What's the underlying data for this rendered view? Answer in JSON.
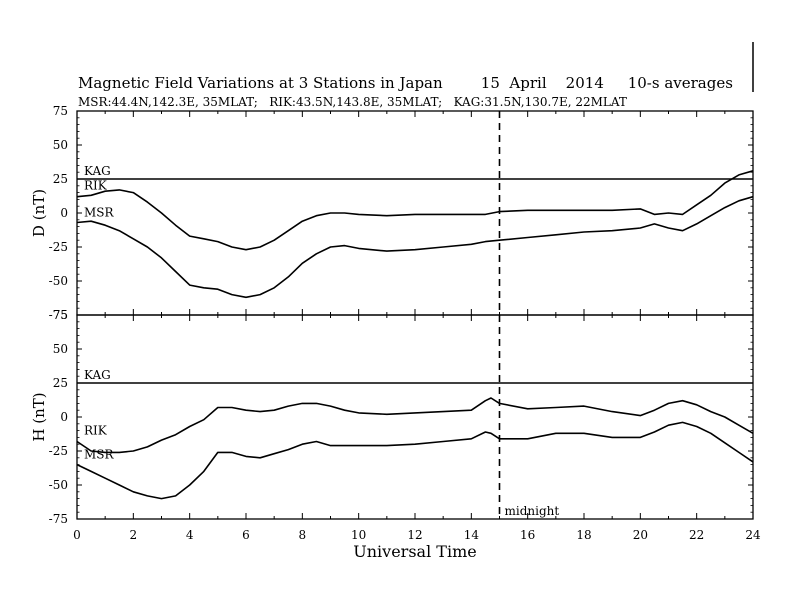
{
  "chart_data": [
    {
      "type": "line",
      "panel": "D",
      "title": "Magnetic Field Variations at 3 Stations in Japan        15  April    2014     10-s averages",
      "subtitle": "MSR:44.4N,142.3E, 35MLAT;   RIK:43.5N,143.8E, 35MLAT;   KAG:31.5N,130.7E, 22MLAT",
      "ylabel": "D (nT)",
      "xlabel": "",
      "xlim": [
        0,
        24
      ],
      "ylim": [
        -75,
        75
      ],
      "yticks": [
        "75",
        "50",
        "25",
        "0",
        "-25",
        "-50",
        "-75"
      ],
      "series": [
        {
          "name": "KAG",
          "x": [
            0,
            6,
            12,
            18,
            24
          ],
          "values": [
            25,
            25,
            25,
            25,
            25
          ]
        },
        {
          "name": "RIK",
          "x": [
            0,
            0.5,
            1,
            1.5,
            2,
            2.5,
            3,
            3.5,
            4,
            4.5,
            5,
            5.5,
            6,
            6.5,
            7,
            7.5,
            8,
            8.5,
            9,
            9.5,
            10,
            11,
            12,
            13,
            14,
            14.5,
            15,
            16,
            17,
            18,
            19,
            20,
            20.5,
            21,
            21.5,
            22,
            22.5,
            23,
            23.5,
            24
          ],
          "values": [
            12,
            13,
            16,
            17,
            15,
            8,
            0,
            -9,
            -17,
            -19,
            -21,
            -25,
            -27,
            -25,
            -20,
            -13,
            -6,
            -2,
            0,
            0,
            -1,
            -2,
            -1,
            -1,
            -1,
            -1,
            1,
            2,
            2,
            2,
            2,
            3,
            -1,
            0,
            -1,
            6,
            13,
            22,
            28,
            31
          ]
        },
        {
          "name": "MSR",
          "x": [
            0,
            0.5,
            1,
            1.5,
            2,
            2.5,
            3,
            3.5,
            4,
            4.5,
            5,
            5.5,
            6,
            6.5,
            7,
            7.5,
            8,
            8.5,
            9,
            9.5,
            10,
            11,
            12,
            13,
            14,
            14.5,
            15,
            16,
            17,
            18,
            19,
            20,
            20.5,
            21,
            21.5,
            22,
            22.5,
            23,
            23.5,
            24
          ],
          "values": [
            -7,
            -6,
            -9,
            -13,
            -19,
            -25,
            -33,
            -43,
            -53,
            -55,
            -56,
            -60,
            -62,
            -60,
            -55,
            -47,
            -37,
            -30,
            -25,
            -24,
            -26,
            -28,
            -27,
            -25,
            -23,
            -21,
            -20,
            -18,
            -16,
            -14,
            -13,
            -11,
            -8,
            -11,
            -13,
            -8,
            -2,
            4,
            9,
            12
          ]
        }
      ]
    },
    {
      "type": "line",
      "panel": "H",
      "ylabel": "H (nT)",
      "xlabel": "Universal Time",
      "xlim": [
        0,
        24
      ],
      "ylim": [
        -75,
        75
      ],
      "xticks": [
        "0",
        "2",
        "4",
        "6",
        "8",
        "10",
        "12",
        "14",
        "16",
        "18",
        "20",
        "22",
        "24"
      ],
      "yticks": [
        "75",
        "50",
        "25",
        "0",
        "-25",
        "-50",
        "-75"
      ],
      "annotation": {
        "text": "midnight",
        "x": 15
      },
      "series": [
        {
          "name": "KAG",
          "x": [
            0,
            6,
            12,
            18,
            24
          ],
          "values": [
            25,
            25,
            25,
            25,
            25
          ]
        },
        {
          "name": "RIK",
          "x": [
            0,
            0.5,
            1,
            1.5,
            2,
            2.5,
            3,
            3.5,
            4,
            4.5,
            5,
            5.5,
            6,
            6.5,
            7,
            7.5,
            8,
            8.5,
            9,
            9.5,
            10,
            11,
            12,
            13,
            14,
            14.5,
            14.7,
            15,
            16,
            17,
            18,
            19,
            20,
            20.5,
            21,
            21.5,
            22,
            22.5,
            23,
            23.5,
            24
          ],
          "values": [
            -18,
            -25,
            -26,
            -26,
            -25,
            -22,
            -17,
            -13,
            -7,
            -2,
            7,
            7,
            5,
            4,
            5,
            8,
            10,
            10,
            8,
            5,
            3,
            2,
            3,
            4,
            5,
            12,
            14,
            10,
            6,
            7,
            8,
            4,
            1,
            5,
            10,
            12,
            9,
            4,
            0,
            -6,
            -12
          ]
        },
        {
          "name": "MSR",
          "x": [
            0,
            0.5,
            1,
            1.5,
            2,
            2.5,
            3,
            3.5,
            4,
            4.5,
            5,
            5.5,
            6,
            6.5,
            7,
            7.5,
            8,
            8.5,
            9,
            9.5,
            10,
            11,
            12,
            13,
            14,
            14.5,
            14.7,
            15,
            16,
            17,
            18,
            19,
            20,
            20.5,
            21,
            21.5,
            22,
            22.5,
            23,
            23.5,
            24
          ],
          "values": [
            -35,
            -40,
            -45,
            -50,
            -55,
            -58,
            -60,
            -58,
            -50,
            -40,
            -26,
            -26,
            -29,
            -30,
            -27,
            -24,
            -20,
            -18,
            -21,
            -21,
            -21,
            -21,
            -20,
            -18,
            -16,
            -11,
            -12,
            -16,
            -16,
            -12,
            -12,
            -15,
            -15,
            -11,
            -6,
            -4,
            -7,
            -12,
            -19,
            -26,
            -33
          ]
        }
      ]
    }
  ]
}
